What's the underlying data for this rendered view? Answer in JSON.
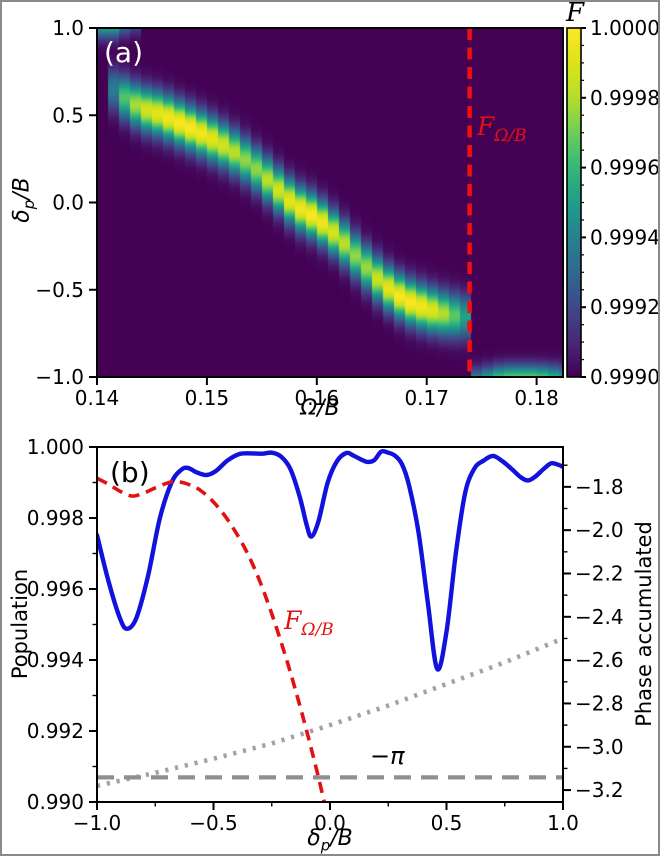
{
  "figure": {
    "background": "#ffffff",
    "border_color": "#8a8a8a"
  },
  "panel_a": {
    "label": "(a)",
    "xlabel": {
      "main": "Ω",
      "tail": "/B"
    },
    "ylabel": {
      "main": "δ",
      "sub": "p",
      "tail": "/B"
    },
    "vline_label": {
      "main": "F",
      "sub": "Ω/B"
    },
    "colorbar_title": "F"
  },
  "panel_b": {
    "label": "(b)",
    "xlabel": {
      "main": "δ",
      "sub": "p",
      "tail": "/B"
    },
    "ylabel_left": "Population",
    "ylabel_right": "Phase accumulated",
    "curve_label": {
      "main": "F",
      "sub": "Ω/B"
    },
    "annotation_pi": "−π"
  },
  "chart_data": [
    {
      "type": "heatmap",
      "panel": "a",
      "title": "",
      "xlabel": "Ω/B",
      "ylabel": "δ_p/B",
      "xlim": [
        0.14,
        0.1824
      ],
      "ylim": [
        -1.0,
        1.0
      ],
      "xticks": {
        "values": [
          0.14,
          0.15,
          0.16,
          0.17,
          0.18
        ],
        "labels": [
          "0.14",
          "0.15",
          "0.16",
          "0.17",
          "0.18"
        ]
      },
      "yticks": {
        "values": [
          1.0,
          0.5,
          0.0,
          -0.5,
          -1.0
        ],
        "labels": [
          "1.0",
          "0.5",
          "0.0",
          "−0.5",
          "−1.0"
        ]
      },
      "colorbar": {
        "label": "F",
        "lim": [
          0.999,
          1.0
        ],
        "tick_values": [
          1.0,
          0.9998,
          0.9996,
          0.9994,
          0.9992,
          0.999
        ],
        "tick_labels": [
          "1.0000",
          "0.9998",
          "0.9996",
          "0.9994",
          "0.9992",
          "0.9990"
        ]
      },
      "colormap": "viridis",
      "colormap_stops": [
        [
          0.0,
          "#440154"
        ],
        [
          0.1,
          "#482878"
        ],
        [
          0.2,
          "#3e4a89"
        ],
        [
          0.3,
          "#31688e"
        ],
        [
          0.4,
          "#26828e"
        ],
        [
          0.5,
          "#1f9e89"
        ],
        [
          0.6,
          "#35b779"
        ],
        [
          0.7,
          "#6dcd59"
        ],
        [
          0.8,
          "#b4de2c"
        ],
        [
          0.9,
          "#dde318"
        ],
        [
          1.0,
          "#fde725"
        ]
      ],
      "background_value": 0.999,
      "column_width_omega": 0.001,
      "bands": [
        {
          "name": "main-ridge",
          "sigma_delta": 0.085,
          "points_omega_delta_peakF": [
            [
              0.1412,
              0.66,
              0.9993
            ],
            [
              0.1425,
              0.6,
              0.99965
            ],
            [
              0.144,
              0.54,
              0.99985
            ],
            [
              0.146,
              0.5,
              0.99995
            ],
            [
              0.148,
              0.44,
              1.0
            ],
            [
              0.15,
              0.38,
              0.99995
            ],
            [
              0.152,
              0.31,
              0.99985
            ],
            [
              0.154,
              0.22,
              0.99972
            ],
            [
              0.156,
              0.1,
              0.99985
            ],
            [
              0.158,
              -0.02,
              0.99995
            ],
            [
              0.16,
              -0.09,
              1.0
            ],
            [
              0.162,
              -0.2,
              0.99985
            ],
            [
              0.164,
              -0.34,
              0.99972
            ],
            [
              0.166,
              -0.47,
              0.9999
            ],
            [
              0.168,
              -0.56,
              1.0
            ],
            [
              0.17,
              -0.61,
              0.99995
            ],
            [
              0.172,
              -0.645,
              0.99975
            ],
            [
              0.1739,
              -0.66,
              0.99945
            ]
          ]
        },
        {
          "name": "top-left-patch",
          "sigma_delta": 0.06,
          "points_omega_delta_peakF": [
            [
              0.1395,
              1.03,
              0.99958
            ],
            [
              0.1415,
              1.03,
              0.99958
            ],
            [
              0.1432,
              1.05,
              0.99925
            ]
          ]
        },
        {
          "name": "bottom-right-band",
          "sigma_delta": 0.06,
          "points_omega_delta_peakF": [
            [
              0.1743,
              -1.04,
              0.99945
            ],
            [
              0.177,
              -1.02,
              0.99972
            ],
            [
              0.18,
              -1.02,
              0.99972
            ],
            [
              0.1825,
              -1.03,
              0.99958
            ]
          ]
        }
      ],
      "vline": {
        "x": 0.1739,
        "color": "#f01010",
        "style": "dashed",
        "label": "F_Ω/B"
      }
    },
    {
      "type": "line",
      "panel": "b",
      "title": "",
      "xlabel": "δ_p/B",
      "xlim": [
        -1.0,
        1.0
      ],
      "xticks": {
        "values": [
          -1.0,
          -0.5,
          0.0,
          0.5,
          1.0
        ],
        "labels": [
          "−1.0",
          "−0.5",
          "0.0",
          "0.5",
          "1.0"
        ]
      },
      "xminor_values": [
        -0.75,
        -0.25,
        0.25,
        0.75
      ],
      "left_axis": {
        "label": "Population",
        "lim": [
          0.99,
          1.0
        ],
        "tick_values": [
          1.0,
          0.998,
          0.996,
          0.994,
          0.992,
          0.99
        ],
        "tick_labels": [
          "1.000",
          "0.998",
          "0.996",
          "0.994",
          "0.992",
          "0.990"
        ],
        "minor_values": [
          0.999,
          0.997,
          0.995,
          0.993,
          0.991
        ]
      },
      "right_axis": {
        "label": "Phase accumulated",
        "lim": [
          -3.255,
          -1.616
        ],
        "tick_values": [
          -1.8,
          -2.0,
          -2.2,
          -2.4,
          -2.6,
          -2.8,
          -3.0,
          -3.2
        ],
        "tick_labels": [
          "−1.8",
          "−2.0",
          "−2.2",
          "−2.4",
          "−2.6",
          "−2.8",
          "−3.0",
          "−3.2"
        ],
        "minor_values": [
          -1.7,
          -1.9,
          -2.1,
          -2.3,
          -2.5,
          -2.7,
          -2.9,
          -3.1
        ]
      },
      "series": [
        {
          "name": "population",
          "axis": "left",
          "color": "#1212dd",
          "style": "solid",
          "width": 4.4,
          "smooth": true,
          "x": [
            -1.0,
            -0.95,
            -0.9,
            -0.87,
            -0.83,
            -0.78,
            -0.73,
            -0.68,
            -0.64,
            -0.61,
            -0.57,
            -0.53,
            -0.49,
            -0.44,
            -0.39,
            -0.34,
            -0.29,
            -0.25,
            -0.21,
            -0.17,
            -0.13,
            -0.1,
            -0.08,
            -0.05,
            -0.01,
            0.03,
            0.07,
            0.1,
            0.13,
            0.16,
            0.19,
            0.22,
            0.25,
            0.28,
            0.31,
            0.34,
            0.38,
            0.42,
            0.46,
            0.5,
            0.54,
            0.58,
            0.62,
            0.66,
            0.7,
            0.74,
            0.78,
            0.82,
            0.85,
            0.88,
            0.92,
            0.95,
            0.98,
            1.0
          ],
          "y": [
            0.99752,
            0.9962,
            0.99515,
            0.99488,
            0.9952,
            0.9964,
            0.998,
            0.999,
            0.99935,
            0.99941,
            0.99928,
            0.99921,
            0.99932,
            0.99962,
            0.9998,
            0.99982,
            0.99981,
            0.99984,
            0.99973,
            0.99938,
            0.9986,
            0.9978,
            0.99748,
            0.9979,
            0.999,
            0.9996,
            0.99983,
            0.99976,
            0.99966,
            0.99958,
            0.99963,
            0.99987,
            0.99984,
            0.99975,
            0.9995,
            0.9989,
            0.9976,
            0.9956,
            0.99375,
            0.9948,
            0.997,
            0.9987,
            0.9994,
            0.99962,
            0.99975,
            0.9996,
            0.99938,
            0.99914,
            0.99906,
            0.99916,
            0.9994,
            0.99954,
            0.9995,
            0.99944
          ]
        },
        {
          "name": "fidelity F_Ω/B",
          "axis": "left",
          "color": "#e31212",
          "style": "dashed",
          "width": 3.6,
          "smooth": true,
          "x": [
            -1.0,
            -0.95,
            -0.9,
            -0.85,
            -0.8,
            -0.75,
            -0.7,
            -0.66,
            -0.6,
            -0.55,
            -0.5,
            -0.45,
            -0.4,
            -0.35,
            -0.3,
            -0.25,
            -0.2,
            -0.15,
            -0.1,
            -0.05,
            0.0,
            0.03
          ],
          "y": [
            0.99912,
            0.99895,
            0.99875,
            0.99862,
            0.9987,
            0.99885,
            0.99898,
            0.99903,
            0.99893,
            0.99875,
            0.99845,
            0.99805,
            0.99755,
            0.99695,
            0.9962,
            0.9953,
            0.9943,
            0.9932,
            0.992,
            0.9907,
            0.9893,
            0.9885
          ]
        },
        {
          "name": "phase accumulated",
          "axis": "right",
          "color": "#a2a2a2",
          "style": "dotted",
          "width": 4.6,
          "smooth": false,
          "x": [
            -1.0,
            -0.75,
            -0.5,
            -0.25,
            0.0,
            0.25,
            0.5,
            0.75,
            1.0
          ],
          "y": [
            -3.18,
            -3.12,
            -3.055,
            -2.985,
            -2.9,
            -2.81,
            -2.71,
            -2.61,
            -2.5
          ]
        },
        {
          "name": "minus-pi reference",
          "axis": "right",
          "color": "#8f8f8f",
          "style": "dashed",
          "width": 4.2,
          "smooth": false,
          "y_const": -3.1416
        }
      ],
      "annotations": [
        {
          "text": "−π",
          "color": "#000000"
        }
      ]
    }
  ]
}
